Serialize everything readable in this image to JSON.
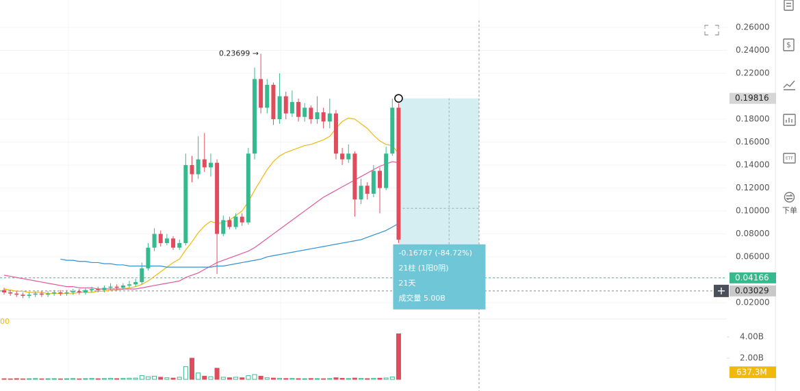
{
  "chart_data": {
    "type": "candlestick",
    "annotation": "0.23699 →",
    "corner_label": "00",
    "up_color": "#35b98e",
    "down_color": "#df4d5c",
    "open": [
      0.031,
      0.029,
      0.028,
      0.027,
      0.026,
      0.027,
      0.028,
      0.027,
      0.028,
      0.029,
      0.028,
      0.029,
      0.03,
      0.029,
      0.031,
      0.032,
      0.031,
      0.033,
      0.034,
      0.033,
      0.035,
      0.036,
      0.038,
      0.05,
      0.068,
      0.08,
      0.072,
      0.076,
      0.068,
      0.072,
      0.14,
      0.132,
      0.145,
      0.138,
      0.142,
      0.08,
      0.092,
      0.086,
      0.095,
      0.09,
      0.15,
      0.215,
      0.19,
      0.21,
      0.18,
      0.2,
      0.185,
      0.195,
      0.182,
      0.19,
      0.18,
      0.186,
      0.178,
      0.185,
      0.15,
      0.145,
      0.15,
      0.11,
      0.122,
      0.115,
      0.135,
      0.12,
      0.15,
      0.19
    ],
    "high": [
      0.033,
      0.031,
      0.03,
      0.029,
      0.029,
      0.03,
      0.03,
      0.03,
      0.031,
      0.031,
      0.031,
      0.032,
      0.032,
      0.033,
      0.034,
      0.034,
      0.035,
      0.037,
      0.036,
      0.037,
      0.039,
      0.041,
      0.055,
      0.072,
      0.085,
      0.083,
      0.08,
      0.078,
      0.075,
      0.15,
      0.148,
      0.165,
      0.168,
      0.15,
      0.145,
      0.096,
      0.095,
      0.098,
      0.098,
      0.155,
      0.225,
      0.237,
      0.215,
      0.212,
      0.22,
      0.204,
      0.205,
      0.198,
      0.194,
      0.192,
      0.2,
      0.19,
      0.198,
      0.188,
      0.155,
      0.158,
      0.152,
      0.128,
      0.125,
      0.14,
      0.138,
      0.156,
      0.198,
      0.194
    ],
    "low": [
      0.027,
      0.026,
      0.025,
      0.024,
      0.024,
      0.025,
      0.025,
      0.025,
      0.026,
      0.026,
      0.026,
      0.027,
      0.027,
      0.027,
      0.029,
      0.029,
      0.029,
      0.031,
      0.031,
      0.031,
      0.033,
      0.034,
      0.036,
      0.048,
      0.065,
      0.069,
      0.07,
      0.066,
      0.066,
      0.07,
      0.125,
      0.128,
      0.134,
      0.13,
      0.045,
      0.078,
      0.084,
      0.084,
      0.087,
      0.088,
      0.145,
      0.185,
      0.185,
      0.175,
      0.176,
      0.18,
      0.182,
      0.178,
      0.178,
      0.176,
      0.176,
      0.172,
      0.172,
      0.145,
      0.14,
      0.142,
      0.095,
      0.106,
      0.11,
      0.112,
      0.098,
      0.118,
      0.148,
      0.072
    ],
    "close": [
      0.029,
      0.028,
      0.027,
      0.026,
      0.027,
      0.028,
      0.027,
      0.028,
      0.029,
      0.028,
      0.029,
      0.03,
      0.029,
      0.031,
      0.032,
      0.031,
      0.033,
      0.034,
      0.033,
      0.035,
      0.036,
      0.038,
      0.05,
      0.068,
      0.08,
      0.072,
      0.076,
      0.068,
      0.072,
      0.14,
      0.132,
      0.145,
      0.138,
      0.142,
      0.08,
      0.092,
      0.086,
      0.095,
      0.09,
      0.15,
      0.215,
      0.19,
      0.21,
      0.18,
      0.2,
      0.185,
      0.195,
      0.182,
      0.19,
      0.18,
      0.186,
      0.178,
      0.185,
      0.15,
      0.145,
      0.15,
      0.11,
      0.122,
      0.115,
      0.135,
      0.12,
      0.15,
      0.19,
      0.075
    ],
    "volume": [
      60000000.0,
      50000000.0,
      70000000.0,
      50000000.0,
      60000000.0,
      80000000.0,
      50000000.0,
      60000000.0,
      70000000.0,
      50000000.0,
      60000000.0,
      80000000.0,
      50000000.0,
      70000000.0,
      90000000.0,
      60000000.0,
      80000000.0,
      100000000.0,
      70000000.0,
      90000000.0,
      110000000.0,
      120000000.0,
      350000000.0,
      250000000.0,
      300000000.0,
      200000000.0,
      150000000.0,
      120000000.0,
      200000000.0,
      1200000000.0,
      2000000000.0,
      600000000.0,
      300000000.0,
      250000000.0,
      1050000000.0,
      200000000.0,
      150000000.0,
      200000000.0,
      150000000.0,
      350000000.0,
      450000000.0,
      300000000.0,
      150000000.0,
      120000000.0,
      100000000.0,
      80000000.0,
      90000000.0,
      70000000.0,
      60000000.0,
      80000000.0,
      70000000.0,
      60000000.0,
      80000000.0,
      150000000.0,
      100000000.0,
      80000000.0,
      120000000.0,
      90000000.0,
      70000000.0,
      100000000.0,
      110000000.0,
      130000000.0,
      220000000.0,
      4300000000.0
    ],
    "series": [
      {
        "color": "#f0b90b",
        "values": [
          0.032,
          0.031,
          0.03,
          0.03,
          0.029,
          0.029,
          0.029,
          0.028,
          0.028,
          0.028,
          0.028,
          0.028,
          0.029,
          0.029,
          0.029,
          0.03,
          0.03,
          0.031,
          0.031,
          0.032,
          0.033,
          0.034,
          0.036,
          0.039,
          0.043,
          0.047,
          0.051,
          0.055,
          0.058,
          0.066,
          0.073,
          0.081,
          0.087,
          0.091,
          0.089,
          0.09,
          0.092,
          0.096,
          0.1,
          0.108,
          0.118,
          0.127,
          0.136,
          0.143,
          0.148,
          0.151,
          0.153,
          0.155,
          0.157,
          0.158,
          0.16,
          0.162,
          0.165,
          0.172,
          0.178,
          0.181,
          0.18,
          0.176,
          0.172,
          0.166,
          0.161,
          0.158,
          0.157,
          0.15
        ]
      },
      {
        "color": "#e4579a",
        "values": [
          0.044,
          0.043,
          0.042,
          0.041,
          0.04,
          0.039,
          0.038,
          0.037,
          0.036,
          0.035,
          0.034,
          0.034,
          0.033,
          0.033,
          0.033,
          0.032,
          0.032,
          0.032,
          0.032,
          0.032,
          0.032,
          0.032,
          0.033,
          0.034,
          0.035,
          0.036,
          0.037,
          0.038,
          0.039,
          0.042,
          0.044,
          0.046,
          0.049,
          0.052,
          0.055,
          0.057,
          0.059,
          0.061,
          0.063,
          0.065,
          0.068,
          0.072,
          0.076,
          0.08,
          0.084,
          0.088,
          0.092,
          0.096,
          0.1,
          0.104,
          0.108,
          0.112,
          0.115,
          0.118,
          0.121,
          0.124,
          0.127,
          0.13,
          0.133,
          0.136,
          0.139,
          0.141,
          0.143,
          0.142
        ]
      },
      {
        "color": "#2d8fd5",
        "values": [
          null,
          null,
          null,
          null,
          null,
          null,
          null,
          null,
          null,
          0.058,
          0.057,
          0.057,
          0.056,
          0.056,
          0.055,
          0.055,
          0.054,
          0.054,
          0.053,
          0.053,
          0.052,
          0.052,
          0.052,
          0.052,
          0.052,
          0.052,
          0.051,
          0.051,
          0.051,
          0.051,
          0.051,
          0.051,
          0.051,
          0.051,
          0.052,
          0.052,
          0.053,
          0.054,
          0.055,
          0.056,
          0.057,
          0.058,
          0.06,
          0.061,
          0.062,
          0.063,
          0.064,
          0.065,
          0.066,
          0.067,
          0.068,
          0.069,
          0.07,
          0.071,
          0.072,
          0.073,
          0.074,
          0.075,
          0.077,
          0.079,
          0.081,
          0.083,
          0.086,
          0.089
        ]
      }
    ],
    "ylim": [
      0.0093,
      0.266
    ],
    "yticks": [
      {
        "value": 0.26,
        "label": "0.26000"
      },
      {
        "value": 0.24,
        "label": "0.24000"
      },
      {
        "value": 0.22,
        "label": "0.22000"
      },
      {
        "value": 0.18,
        "label": "0.18000"
      },
      {
        "value": 0.16,
        "label": "0.16000"
      },
      {
        "value": 0.14,
        "label": "0.14000"
      },
      {
        "value": 0.12,
        "label": "0.12000"
      },
      {
        "value": 0.1,
        "label": "0.10000"
      },
      {
        "value": 0.08,
        "label": "0.08000"
      },
      {
        "value": 0.06,
        "label": "0.06000"
      },
      {
        "value": 0.02,
        "label": "0.02000"
      }
    ],
    "volume_ylim": [
      0,
      5300000000
    ],
    "volume_yticks": [
      {
        "value": 4000000000,
        "label": "4.00B"
      },
      {
        "value": 2000000000,
        "label": "2.00B"
      }
    ],
    "grid": true,
    "price_tags": [
      {
        "value": 0.19816,
        "label": "0.19816",
        "color": "#d6d6d6"
      },
      {
        "value": 0.04166,
        "label": "0.04166",
        "color": "#37b98d"
      },
      {
        "value": 0.03029,
        "label": "0.03029",
        "color": "#c9c9c9"
      }
    ],
    "volume_tag": {
      "value": 637300000,
      "label": "637.3M",
      "color": "#f0b90b"
    },
    "measure": {
      "from": 0.19816,
      "to": 0.03029,
      "lines": [
        "-0.16787 (-84.72%)",
        "21柱 (1阳0阴)",
        "21天",
        "成交量 5.00B"
      ]
    },
    "toolbar_label": "下单"
  }
}
